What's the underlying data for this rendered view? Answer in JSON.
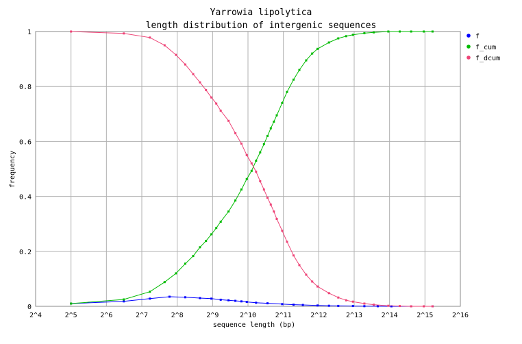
{
  "chart_data": {
    "type": "line",
    "title": "Yarrowia lipolytica",
    "subtitle": "length distribution of intergenic sequences",
    "xlabel": "sequence length (bp)",
    "ylabel": "frequency",
    "x_scale": "log2",
    "xlim": [
      16,
      65536
    ],
    "ylim": [
      0,
      1
    ],
    "x_ticks": [
      "2^4",
      "2^5",
      "2^6",
      "2^7",
      "2^8",
      "2^9",
      "2^10",
      "2^11",
      "2^12",
      "2^13",
      "2^14",
      "2^15",
      "2^16"
    ],
    "y_ticks": [
      "0",
      "0.2",
      "0.4",
      "0.6",
      "0.8",
      "1"
    ],
    "grid": true,
    "legend_position": "top-right, outside plot",
    "series": [
      {
        "name": "f",
        "color": "#0000ff",
        "marker": "point",
        "points": [
          [
            32,
            0.01
          ],
          [
            90,
            0.018
          ],
          [
            150,
            0.028
          ],
          [
            220,
            0.035
          ],
          [
            300,
            0.033
          ],
          [
            400,
            0.03
          ],
          [
            500,
            0.028
          ],
          [
            600,
            0.024
          ],
          [
            700,
            0.022
          ],
          [
            800,
            0.02
          ],
          [
            900,
            0.018
          ],
          [
            1000,
            0.016
          ],
          [
            1200,
            0.013
          ],
          [
            1500,
            0.011
          ],
          [
            2000,
            0.008
          ],
          [
            2500,
            0.006
          ],
          [
            3000,
            0.005
          ],
          [
            4000,
            0.003
          ],
          [
            5000,
            0.002
          ],
          [
            6000,
            0.0015
          ],
          [
            8000,
            0.001
          ],
          [
            10000,
            0.0006
          ],
          [
            13000,
            0.0003
          ],
          [
            17000,
            0.0001
          ],
          [
            25000,
            0.0
          ],
          [
            38000,
            0.0
          ]
        ]
      },
      {
        "name": "f_cum",
        "color": "#00bb00",
        "marker": "point",
        "points": [
          [
            32,
            0.01
          ],
          [
            90,
            0.025
          ],
          [
            150,
            0.053
          ],
          [
            200,
            0.088
          ],
          [
            250,
            0.12
          ],
          [
            300,
            0.155
          ],
          [
            350,
            0.183
          ],
          [
            400,
            0.215
          ],
          [
            450,
            0.238
          ],
          [
            500,
            0.262
          ],
          [
            550,
            0.285
          ],
          [
            600,
            0.308
          ],
          [
            700,
            0.345
          ],
          [
            800,
            0.385
          ],
          [
            900,
            0.425
          ],
          [
            1000,
            0.463
          ],
          [
            1100,
            0.493
          ],
          [
            1200,
            0.53
          ],
          [
            1300,
            0.56
          ],
          [
            1400,
            0.59
          ],
          [
            1500,
            0.62
          ],
          [
            1600,
            0.648
          ],
          [
            1700,
            0.672
          ],
          [
            1800,
            0.695
          ],
          [
            2000,
            0.74
          ],
          [
            2200,
            0.78
          ],
          [
            2500,
            0.825
          ],
          [
            2800,
            0.86
          ],
          [
            3200,
            0.895
          ],
          [
            3600,
            0.92
          ],
          [
            4000,
            0.937
          ],
          [
            5000,
            0.96
          ],
          [
            6000,
            0.975
          ],
          [
            7000,
            0.983
          ],
          [
            8000,
            0.988
          ],
          [
            10000,
            0.994
          ],
          [
            12000,
            0.997
          ],
          [
            16000,
            1.0
          ],
          [
            20000,
            1.0
          ],
          [
            25000,
            1.0
          ],
          [
            32000,
            1.0
          ],
          [
            38000,
            1.0
          ]
        ]
      },
      {
        "name": "f_dcum",
        "color": "#ee4477",
        "marker": "point",
        "points": [
          [
            32,
            1.0
          ],
          [
            90,
            0.993
          ],
          [
            150,
            0.978
          ],
          [
            200,
            0.95
          ],
          [
            250,
            0.915
          ],
          [
            300,
            0.88
          ],
          [
            350,
            0.845
          ],
          [
            400,
            0.815
          ],
          [
            450,
            0.787
          ],
          [
            500,
            0.76
          ],
          [
            550,
            0.738
          ],
          [
            600,
            0.712
          ],
          [
            700,
            0.675
          ],
          [
            800,
            0.63
          ],
          [
            900,
            0.592
          ],
          [
            1000,
            0.55
          ],
          [
            1100,
            0.52
          ],
          [
            1200,
            0.49
          ],
          [
            1300,
            0.455
          ],
          [
            1400,
            0.425
          ],
          [
            1500,
            0.395
          ],
          [
            1600,
            0.37
          ],
          [
            1700,
            0.345
          ],
          [
            1800,
            0.318
          ],
          [
            2000,
            0.275
          ],
          [
            2200,
            0.235
          ],
          [
            2500,
            0.185
          ],
          [
            2800,
            0.15
          ],
          [
            3200,
            0.115
          ],
          [
            3600,
            0.09
          ],
          [
            4000,
            0.072
          ],
          [
            5000,
            0.048
          ],
          [
            6000,
            0.032
          ],
          [
            7000,
            0.022
          ],
          [
            8000,
            0.017
          ],
          [
            10000,
            0.01
          ],
          [
            12000,
            0.006
          ],
          [
            16000,
            0.002
          ],
          [
            20000,
            0.001
          ],
          [
            25000,
            0.0
          ],
          [
            32000,
            0.0
          ],
          [
            38000,
            0.0
          ]
        ]
      }
    ]
  }
}
